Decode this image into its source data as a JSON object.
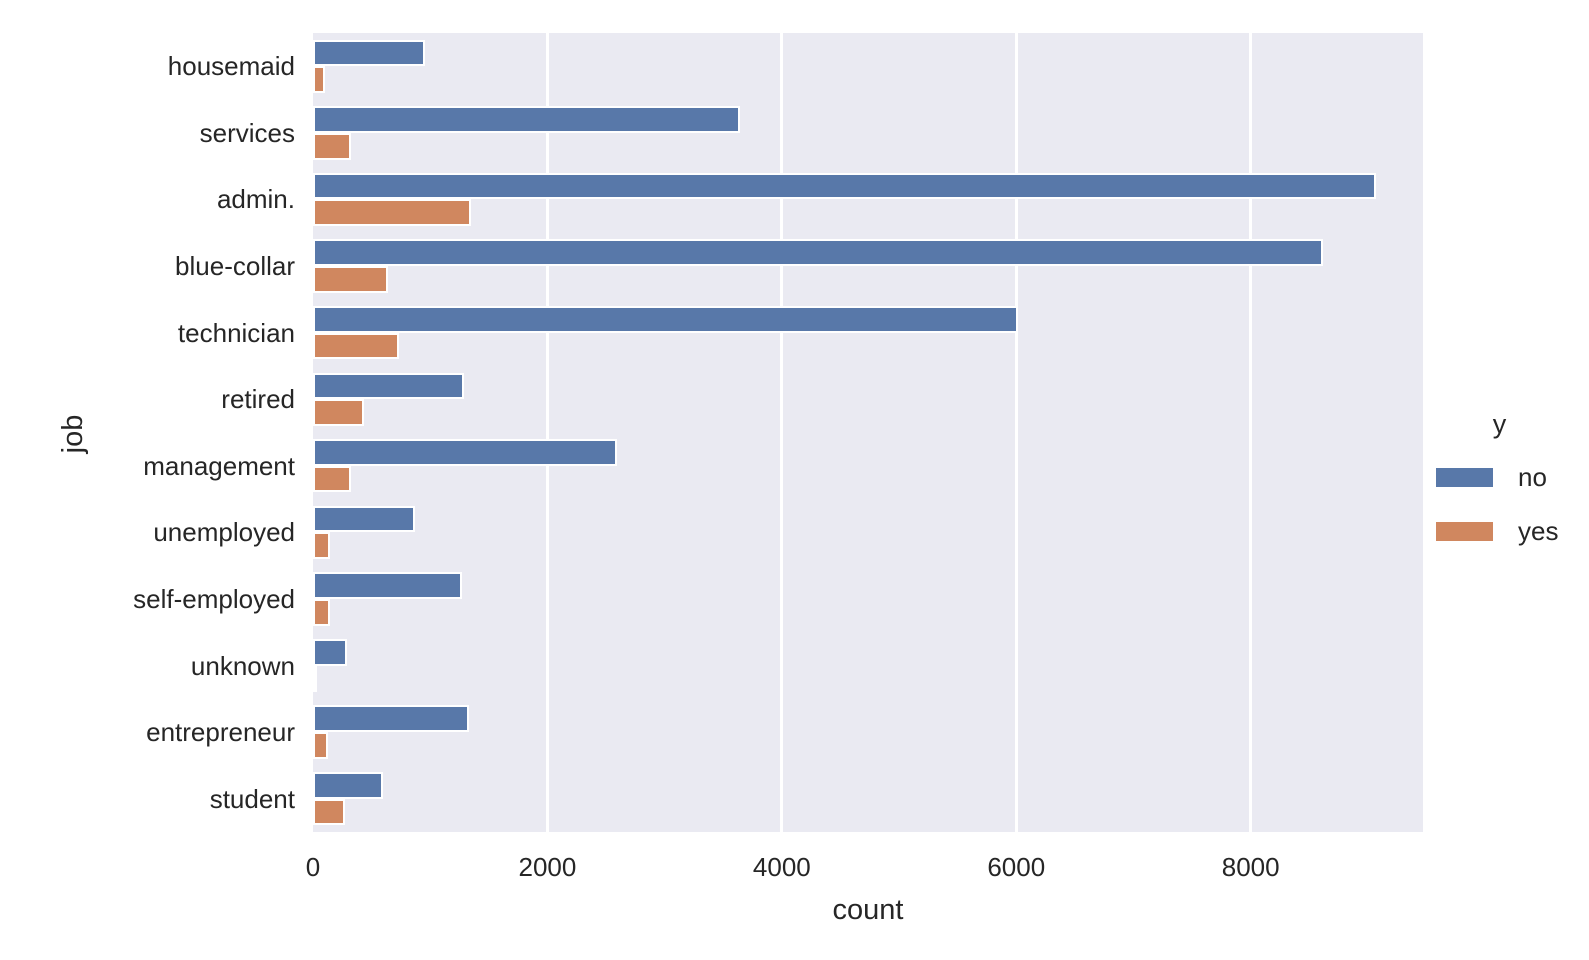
{
  "chart_data": {
    "type": "bar",
    "orientation": "horizontal",
    "title": "",
    "xlabel": "count",
    "ylabel": "job",
    "xlim": [
      0,
      9470
    ],
    "xticks": [
      0,
      2000,
      4000,
      6000,
      8000
    ],
    "grid": "vertical white gridlines on",
    "plot_bg_color": "#EAEAF2",
    "bar_edge_color": "#ffffff",
    "categories": [
      "housemaid",
      "services",
      "admin.",
      "blue-collar",
      "technician",
      "retired",
      "management",
      "unemployed",
      "self-employed",
      "unknown",
      "entrepreneur",
      "student"
    ],
    "series": [
      {
        "name": "no",
        "color": "#5878A9",
        "values": [
          954,
          3646,
          9070,
          8616,
          6013,
          1286,
          2596,
          870,
          1272,
          293,
          1332,
          600
        ]
      },
      {
        "name": "yes",
        "color": "#D0875F",
        "values": [
          106,
          323,
          1352,
          638,
          730,
          434,
          328,
          144,
          149,
          37,
          124,
          275
        ]
      }
    ],
    "legend": {
      "title": "y",
      "position": "outside right, center",
      "entries": [
        {
          "label": "no",
          "color": "#5878A9"
        },
        {
          "label": "yes",
          "color": "#D0875F"
        }
      ]
    }
  }
}
